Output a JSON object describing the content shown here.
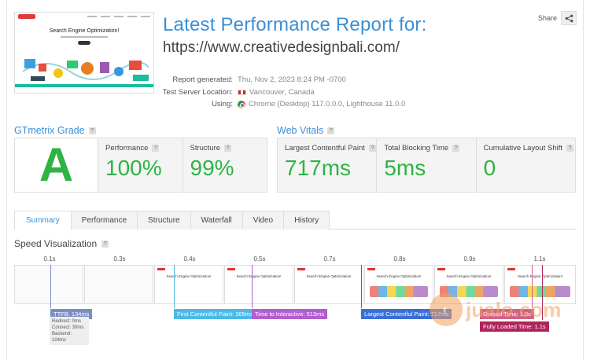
{
  "header": {
    "title": "Latest Performance Report for:",
    "url": "https://www.creativedesignbali.com/",
    "share_label": "Share"
  },
  "thumbnail": {
    "headline": "Search Engine Optimization!"
  },
  "meta": {
    "rows": [
      {
        "key": "Report generated:",
        "value": "Thu, Nov 2, 2023 8:24 PM -0700"
      },
      {
        "key": "Test Server Location:",
        "value": "Vancouver, Canada"
      },
      {
        "key": "Using:",
        "value": "Chrome (Desktop) 117.0.0.0, Lighthouse 11.0.0"
      }
    ]
  },
  "grade": {
    "title": "GTmetrix Grade",
    "letter": "A",
    "performance_label": "Performance",
    "performance_value": "100%",
    "structure_label": "Structure",
    "structure_value": "99%"
  },
  "vitals": {
    "title": "Web Vitals",
    "lcp_label": "Largest Contentful Paint",
    "lcp_value": "717ms",
    "tbt_label": "Total Blocking Time",
    "tbt_value": "5ms",
    "cls_label": "Cumulative Layout Shift",
    "cls_value": "0"
  },
  "tabs": [
    "Summary",
    "Performance",
    "Structure",
    "Waterfall",
    "Video",
    "History"
  ],
  "speed": {
    "title": "Speed Visualization",
    "ticks": [
      "0.1s",
      "0.3s",
      "0.4s",
      "0.5s",
      "0.7s",
      "0.8s",
      "0.9s",
      "1.1s"
    ],
    "frame_text": "Search Engine Optimization!",
    "markers": {
      "ttfb": "TTFB: 134ms",
      "fcp": "First Contentful Paint: 365ms",
      "tti": "Time to Interactive: 513ms",
      "lcp": "Largest Contentful Paint: 717ms",
      "onload": "Onload Time: 1.0s",
      "fully_loaded": "Fully Loaded Time: 1.1s"
    },
    "ttfb_details": [
      "Redirect: 0ms",
      "Connect: 30ms",
      "Backend: 104ms"
    ]
  },
  "watermark": {
    "text": "jualo.com"
  },
  "colors": {
    "accent": "#3b8fd6",
    "grade_green": "#2fb344",
    "ttfb": "#7b8ec0",
    "fcp": "#4bb8e8",
    "tti": "#b05fd0",
    "lcp": "#3b6fd6",
    "onload": "#d0628e",
    "fully_loaded": "#b0245c"
  }
}
